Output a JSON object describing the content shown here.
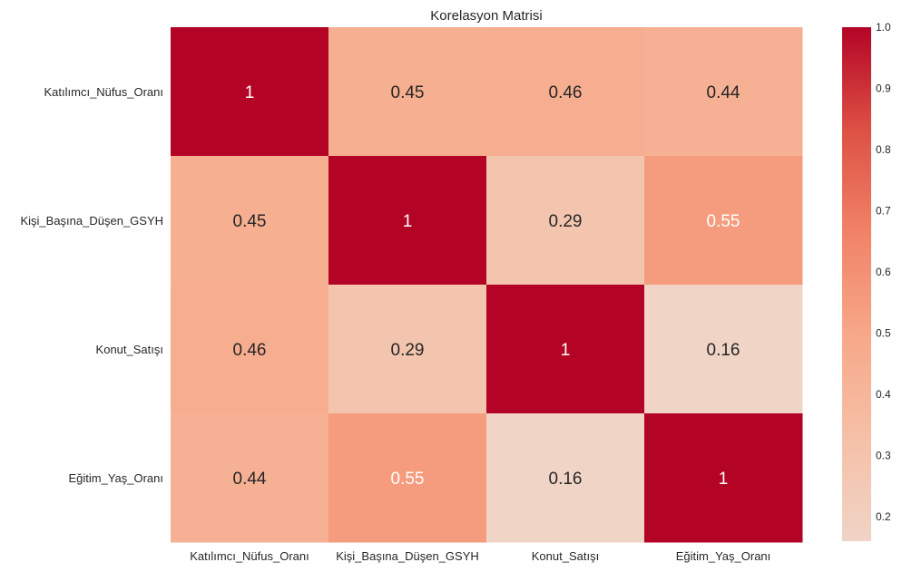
{
  "chart_data": {
    "type": "heatmap",
    "title": "Korelasyon Matrisi",
    "xlabel": "",
    "ylabel": "",
    "rows": [
      "Katılımcı_Nüfus_Oranı",
      "Kişi_Başına_Düşen_GSYH",
      "Konut_Satışı",
      "Eğitim_Yaş_Oranı"
    ],
    "columns": [
      "Katılımcı_Nüfus_Oranı",
      "Kişi_Başına_Düşen_GSYH",
      "Konut_Satışı",
      "Eğitim_Yaş_Oranı"
    ],
    "values": [
      [
        1,
        0.45,
        0.46,
        0.44
      ],
      [
        0.45,
        1,
        0.29,
        0.55
      ],
      [
        0.46,
        0.29,
        1,
        0.16
      ],
      [
        0.44,
        0.55,
        0.16,
        1
      ]
    ],
    "cell_labels": [
      [
        "1",
        "0.45",
        "0.46",
        "0.44"
      ],
      [
        "0.45",
        "1",
        "0.29",
        "0.55"
      ],
      [
        "0.46",
        "0.29",
        "1",
        "0.16"
      ],
      [
        "0.44",
        "0.55",
        "0.16",
        "1"
      ]
    ],
    "colorbar": {
      "min": 0.16,
      "max": 1.0,
      "ticks": [
        0.2,
        0.3,
        0.4,
        0.5,
        0.6,
        0.7,
        0.8,
        0.9,
        1.0
      ],
      "tick_labels": [
        "0.2",
        "0.3",
        "0.4",
        "0.5",
        "0.6",
        "0.7",
        "0.8",
        "0.9",
        "1.0"
      ],
      "colormap": "coolwarm (upper half)",
      "low_color": "#f0d4c6",
      "high_color": "#b40426"
    },
    "grid": false,
    "legend": "colorbar-right"
  }
}
